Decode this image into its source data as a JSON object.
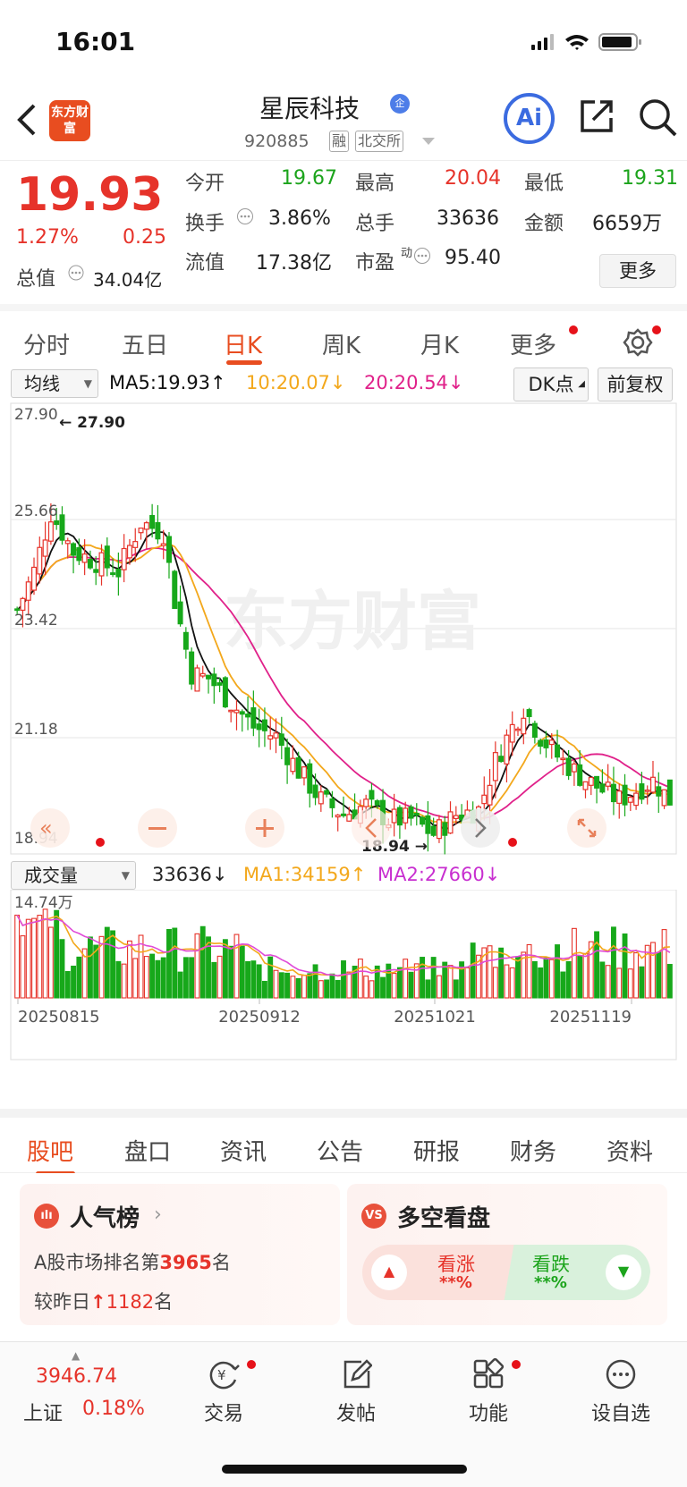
{
  "status": {
    "time": "16:01"
  },
  "header": {
    "logo_text": "东方财富",
    "stock_name": "星辰科技",
    "verified_badge": "企",
    "stock_code": "920885",
    "tag_margin": "融",
    "tag_exchange": "北交所",
    "ai_label": "Ai"
  },
  "quote": {
    "price": "19.93",
    "change_pct": "1.27%",
    "change_amt": "0.25",
    "open_label": "今开",
    "open": "19.67",
    "high_label": "最高",
    "high": "20.04",
    "low_label": "最低",
    "low": "19.31",
    "turnover_label": "换手",
    "turnover": "3.86%",
    "volume_label": "总手",
    "volume": "33636",
    "amount_label": "金额",
    "amount": "6659万",
    "mktcap_label": "总值",
    "mktcap": "34.04亿",
    "float_label": "流值",
    "float": "17.38亿",
    "pe_label": "市盈",
    "pe_sup": "动",
    "pe": "95.40",
    "more_label": "更多"
  },
  "ktabs": {
    "items": [
      "分时",
      "五日",
      "日K",
      "周K",
      "月K",
      "更多"
    ],
    "active": "日K"
  },
  "ma": {
    "selector": "均线",
    "ma5": "MA5:19.93",
    "ma10": "10:20.07",
    "ma20": "20:20.54",
    "dk_label": "DK点",
    "adjust_label": "前复权"
  },
  "kchart": {
    "y_labels": [
      "27.90",
      "25.66",
      "23.42",
      "21.18",
      "18.94"
    ],
    "max_annot": "27.90",
    "min_annot": "18.94",
    "watermark": "东方财富",
    "colors": {
      "up": "#e6332a",
      "down": "#17a81a",
      "ma5": "#111111",
      "ma10": "#f3a81c",
      "ma20": "#e0218a"
    }
  },
  "vol": {
    "selector": "成交量",
    "value": "33636",
    "ma1": "MA1:34159",
    "ma2": "MA2:27660",
    "max_label": "14.74万",
    "dates": [
      "20250815",
      "20250912",
      "20251021",
      "20251119"
    ]
  },
  "btabs": {
    "items": [
      "股吧",
      "盘口",
      "资讯",
      "公告",
      "研报",
      "财务",
      "资料"
    ],
    "active": "股吧"
  },
  "rank_card": {
    "title": "人气榜",
    "line1_prefix": "A股市场排名第",
    "line1_num": "3965",
    "line1_suffix": "名",
    "line2_prefix": "较昨日",
    "line2_num": "1182",
    "line2_suffix": "名"
  },
  "dk_card": {
    "title": "多空看盘",
    "bull_label": "看涨",
    "bull_val": "**%",
    "bear_label": "看跌",
    "bear_val": "**%"
  },
  "tabbar": {
    "index_value": "3946.74",
    "index_name": "上证",
    "index_change": "0.18%",
    "trade": "交易",
    "post": "发帖",
    "func": "功能",
    "watch": "设自选"
  }
}
